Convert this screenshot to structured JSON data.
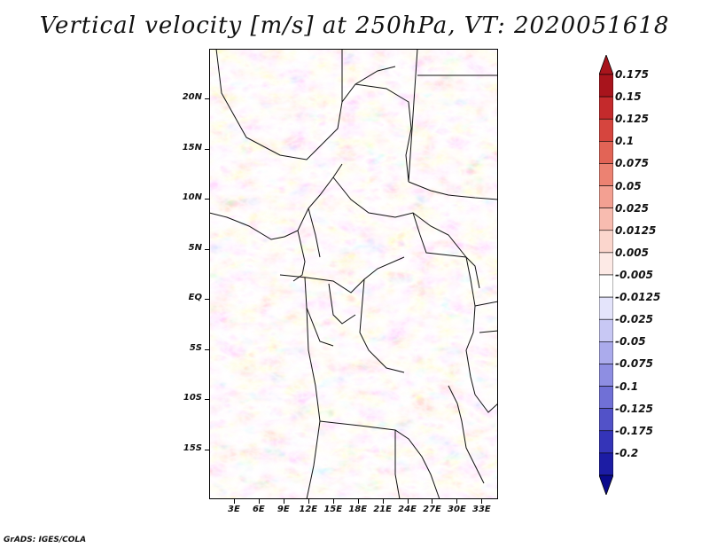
{
  "title": "Vertical velocity [m/s] at 250hPa, VT: 2020051618",
  "credit": "GrADS: IGES/COLA",
  "map": {
    "lon_range": [
      0,
      35
    ],
    "lat_range": [
      -20,
      25
    ],
    "lat_ticks": [
      {
        "value": 20,
        "label": "20N"
      },
      {
        "value": 15,
        "label": "15N"
      },
      {
        "value": 10,
        "label": "10N"
      },
      {
        "value": 5,
        "label": "5N"
      },
      {
        "value": 0,
        "label": "EQ"
      },
      {
        "value": -5,
        "label": "5S"
      },
      {
        "value": -10,
        "label": "10S"
      },
      {
        "value": -15,
        "label": "15S"
      }
    ],
    "lon_ticks": [
      {
        "value": 3,
        "label": "3E"
      },
      {
        "value": 6,
        "label": "6E"
      },
      {
        "value": 9,
        "label": "9E"
      },
      {
        "value": 12,
        "label": "12E"
      },
      {
        "value": 15,
        "label": "15E"
      },
      {
        "value": 18,
        "label": "18E"
      },
      {
        "value": 21,
        "label": "21E"
      },
      {
        "value": 24,
        "label": "24E"
      },
      {
        "value": 27,
        "label": "27E"
      },
      {
        "value": 30,
        "label": "30E"
      },
      {
        "value": 33,
        "label": "33E"
      }
    ]
  },
  "colorbar": {
    "top_color": "#a8141c",
    "bottom_color": "#0a0a8c",
    "levels": [
      {
        "label": "0.175",
        "color": "#a8141c"
      },
      {
        "label": "0.15",
        "color": "#c42a2c"
      },
      {
        "label": "0.125",
        "color": "#d6453e"
      },
      {
        "label": "0.1",
        "color": "#e26456"
      },
      {
        "label": "0.075",
        "color": "#ec8272"
      },
      {
        "label": "0.05",
        "color": "#f3a092"
      },
      {
        "label": "0.025",
        "color": "#f8bcb0"
      },
      {
        "label": "0.0125",
        "color": "#fbd6cd"
      },
      {
        "label": "0.005",
        "color": "#fdeae6"
      },
      {
        "label": "-0.005",
        "color": "#ffffff"
      },
      {
        "label": "-0.0125",
        "color": "#e4e4fb"
      },
      {
        "label": "-0.025",
        "color": "#c8c8f4"
      },
      {
        "label": "-0.05",
        "color": "#ababec"
      },
      {
        "label": "-0.075",
        "color": "#8e8ee2"
      },
      {
        "label": "-0.1",
        "color": "#7070d6"
      },
      {
        "label": "-0.125",
        "color": "#5252c8"
      },
      {
        "label": "-0.175",
        "color": "#3434b8"
      },
      {
        "label": "-0.2",
        "color": "#1c1ca4"
      }
    ]
  }
}
